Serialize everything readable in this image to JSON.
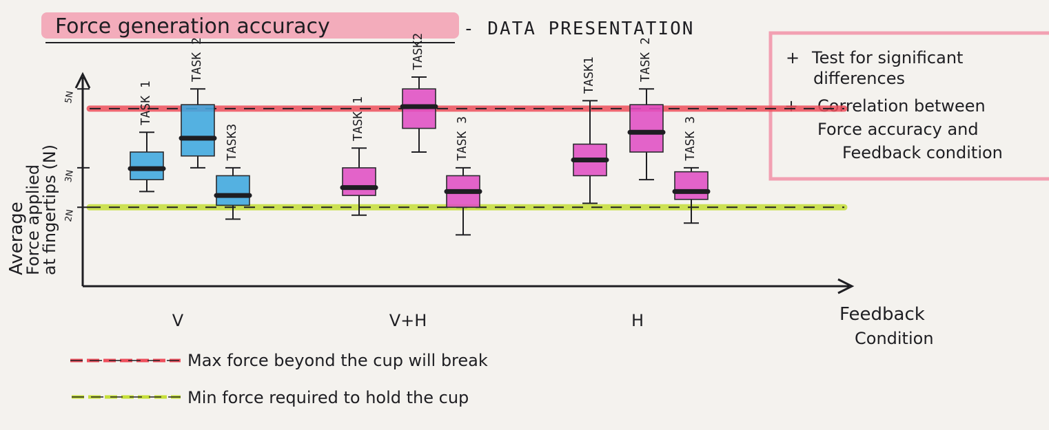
{
  "page": {
    "title": "Force generation accuracy",
    "subtitle": "- DATA PRESENTATION"
  },
  "notes": {
    "items": [
      {
        "bullet": "+",
        "lines": [
          "Test for significant",
          "differences"
        ]
      },
      {
        "bullet": "+",
        "lines": [
          "Correlation between",
          "Force accuracy and",
          "Feedback condition"
        ]
      }
    ]
  },
  "legend": {
    "items": [
      {
        "label": "Max force beyond the cup will break",
        "color": "#ee4f5c"
      },
      {
        "label": "Min force required to hold the cup",
        "color": "#c6df3a"
      }
    ]
  },
  "chart_data": {
    "type": "box",
    "ylabel": [
      "Average",
      "Force applied",
      "at fingertips (N)"
    ],
    "xlabel": [
      "Feedback",
      "Condition"
    ],
    "y_ticks": [
      {
        "value": 5,
        "label": "5N"
      },
      {
        "value": 3,
        "label": "3N"
      },
      {
        "value": 2,
        "label": "2N"
      }
    ],
    "ylim": [
      0,
      5.3
    ],
    "groups": [
      "V",
      "V+H",
      "H"
    ],
    "reference_lines": [
      {
        "value": 4.5,
        "color": "#ee4f5c",
        "style": "dashed"
      },
      {
        "value": 2.0,
        "color": "#c6df3a",
        "style": "dashed"
      }
    ],
    "series": [
      {
        "group": "V",
        "label": "TASK 1",
        "color": "#3ea7df",
        "min": 2.4,
        "q1": 2.7,
        "median": 2.98,
        "q3": 3.4,
        "max": 3.9
      },
      {
        "group": "V",
        "label": "TASK 2",
        "color": "#3ea7df",
        "min": 3.0,
        "q1": 3.3,
        "median": 3.75,
        "q3": 4.6,
        "max": 5.0
      },
      {
        "group": "V",
        "label": "TASK3",
        "color": "#3ea7df",
        "min": 1.7,
        "q1": 2.05,
        "median": 2.3,
        "q3": 2.8,
        "max": 3.0
      },
      {
        "group": "V+H",
        "label": "TASK 1",
        "color": "#e04fc4",
        "min": 1.8,
        "q1": 2.3,
        "median": 2.5,
        "q3": 3.0,
        "max": 3.5
      },
      {
        "group": "V+H",
        "label": "TASK2",
        "color": "#e04fc4",
        "min": 3.4,
        "q1": 4.0,
        "median": 4.55,
        "q3": 5.0,
        "max": 5.3
      },
      {
        "group": "V+H",
        "label": "TASK 3",
        "color": "#e04fc4",
        "min": 1.3,
        "q1": 2.0,
        "median": 2.4,
        "q3": 2.8,
        "max": 3.0
      },
      {
        "group": "H",
        "label": "TASK1",
        "color": "#e04fc4",
        "min": 2.1,
        "q1": 2.8,
        "median": 3.2,
        "q3": 3.6,
        "max": 4.7
      },
      {
        "group": "H",
        "label": "TASK 2",
        "color": "#e04fc4",
        "min": 2.7,
        "q1": 3.4,
        "median": 3.9,
        "q3": 4.6,
        "max": 5.0
      },
      {
        "group": "H",
        "label": "TASK 3",
        "color": "#e04fc4",
        "min": 1.6,
        "q1": 2.2,
        "median": 2.4,
        "q3": 2.9,
        "max": 3.0
      }
    ]
  }
}
